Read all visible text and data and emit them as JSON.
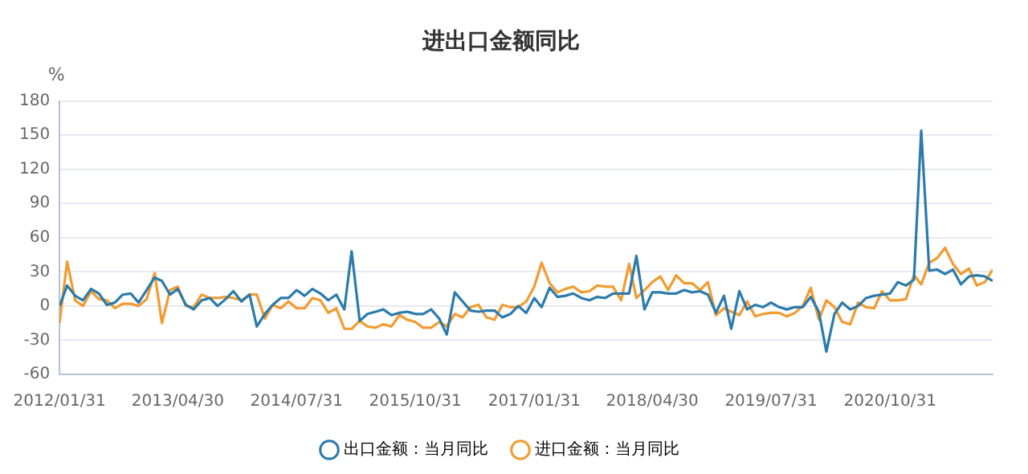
{
  "chart_data": {
    "type": "line",
    "title": "进出口金额同比",
    "ylabel": "%",
    "x": [
      "2012-01-31",
      "2012-02-29",
      "2012-03-31",
      "2012-04-30",
      "2012-05-31",
      "2012-06-30",
      "2012-07-31",
      "2012-08-31",
      "2012-09-30",
      "2012-10-31",
      "2012-11-30",
      "2012-12-31",
      "2013-01-31",
      "2013-02-28",
      "2013-03-31",
      "2013-04-30",
      "2013-05-31",
      "2013-06-30",
      "2013-07-31",
      "2013-08-31",
      "2013-09-30",
      "2013-10-31",
      "2013-11-30",
      "2013-12-31",
      "2014-01-31",
      "2014-02-28",
      "2014-03-31",
      "2014-04-30",
      "2014-05-31",
      "2014-06-30",
      "2014-07-31",
      "2014-08-31",
      "2014-09-30",
      "2014-10-31",
      "2014-11-30",
      "2014-12-31",
      "2015-01-31",
      "2015-02-28",
      "2015-03-31",
      "2015-04-30",
      "2015-05-31",
      "2015-06-30",
      "2015-07-31",
      "2015-08-31",
      "2015-09-30",
      "2015-10-31",
      "2015-11-30",
      "2015-12-31",
      "2016-01-31",
      "2016-02-29",
      "2016-03-31",
      "2016-04-30",
      "2016-05-31",
      "2016-06-30",
      "2016-07-31",
      "2016-08-31",
      "2016-09-30",
      "2016-10-31",
      "2016-11-30",
      "2016-12-31",
      "2017-01-31",
      "2017-02-28",
      "2017-03-31",
      "2017-04-30",
      "2017-05-31",
      "2017-06-30",
      "2017-07-31",
      "2017-08-31",
      "2017-09-30",
      "2017-10-31",
      "2017-11-30",
      "2017-12-31",
      "2018-01-31",
      "2018-02-28",
      "2018-03-31",
      "2018-04-30",
      "2018-05-31",
      "2018-06-30",
      "2018-07-31",
      "2018-08-31",
      "2018-09-30",
      "2018-10-31",
      "2018-11-30",
      "2018-12-31",
      "2019-01-31",
      "2019-02-28",
      "2019-03-31",
      "2019-04-30",
      "2019-05-31",
      "2019-06-30",
      "2019-07-31",
      "2019-08-31",
      "2019-09-30",
      "2019-10-31",
      "2019-11-30",
      "2019-12-31",
      "2020-01-31",
      "2020-02-29",
      "2020-03-31",
      "2020-04-30",
      "2020-05-31",
      "2020-06-30",
      "2020-07-31",
      "2020-08-31",
      "2020-09-30",
      "2020-10-31",
      "2020-11-30",
      "2020-12-31",
      "2021-01-31",
      "2021-02-28",
      "2021-03-31",
      "2021-04-30",
      "2021-05-31",
      "2021-06-30",
      "2021-07-31",
      "2021-08-31",
      "2021-09-30",
      "2021-10-31",
      "2021-11-30"
    ],
    "series": [
      {
        "name": "出口金额：当月同比",
        "color": "#2b7bab",
        "values": [
          0,
          18,
          9,
          5,
          15,
          11,
          1,
          3,
          10,
          11,
          3,
          14,
          25,
          22,
          10,
          15,
          1,
          -3,
          5,
          7,
          0,
          6,
          13,
          4,
          10,
          -18,
          -7,
          1,
          7,
          7,
          14,
          9,
          15,
          11,
          5,
          10,
          -3,
          48,
          -13,
          -7,
          -5,
          -3,
          -8,
          -6,
          -5,
          -7,
          -7,
          -3,
          -11,
          -25,
          12,
          4,
          -4,
          -5,
          -4,
          -4,
          -10,
          -7,
          0,
          -6,
          7,
          -1,
          16,
          8,
          9,
          11,
          7,
          5,
          8,
          7,
          11,
          11,
          11,
          44,
          -3,
          12,
          12,
          11,
          11,
          14,
          12,
          13,
          10,
          -6,
          9,
          -20,
          13,
          -3,
          1,
          -1,
          3,
          -1,
          -3,
          -1,
          -1,
          8,
          -5,
          -40,
          -7,
          3,
          -3,
          0,
          7,
          9,
          10,
          11,
          21,
          18,
          23,
          154,
          31,
          32,
          28,
          32,
          19,
          26,
          27,
          26,
          22
        ]
      },
      {
        "name": "进口金额：当月同比",
        "color": "#f29b2f",
        "values": [
          -15,
          39,
          5,
          0,
          13,
          6,
          5,
          -2,
          2,
          2,
          0,
          6,
          29,
          -15,
          14,
          17,
          0,
          -1,
          10,
          7,
          7,
          8,
          7,
          5,
          10,
          10,
          -11,
          1,
          -2,
          4,
          -2,
          -2,
          7,
          5,
          -6,
          -2,
          -20,
          -20,
          -13,
          -18,
          -19,
          -16,
          -18,
          -8,
          -12,
          -14,
          -19,
          -19,
          -14,
          -18,
          -7,
          -10,
          -1,
          1,
          -10,
          -12,
          1,
          -1,
          -1,
          4,
          17,
          38,
          20,
          12,
          15,
          17,
          12,
          13,
          18,
          17,
          17,
          5,
          37,
          7,
          14,
          21,
          26,
          14,
          27,
          20,
          20,
          14,
          21,
          -8,
          -2,
          -5,
          -8,
          4,
          -9,
          -7,
          -6,
          -6,
          -9,
          -6,
          0,
          16,
          -12,
          5,
          -1,
          -14,
          -16,
          3,
          -1,
          -2,
          13,
          5,
          5,
          6,
          27,
          19,
          38,
          42,
          51,
          37,
          28,
          33,
          18,
          21,
          32
        ]
      }
    ],
    "xlim": [
      "2012-01-31",
      "2021-11-30"
    ],
    "xticks": [
      {
        "value": "2012-01-31",
        "label": "2012/01/31"
      },
      {
        "value": "2013-04-30",
        "label": "2013/04/30"
      },
      {
        "value": "2014-07-31",
        "label": "2014/07/31"
      },
      {
        "value": "2015-10-31",
        "label": "2015/10/31"
      },
      {
        "value": "2017-01-31",
        "label": "2017/01/31"
      },
      {
        "value": "2018-04-30",
        "label": "2018/04/30"
      },
      {
        "value": "2019-07-31",
        "label": "2019/07/31"
      },
      {
        "value": "2020-10-31",
        "label": "2020/10/31"
      }
    ],
    "ylim": [
      -60,
      180
    ],
    "yticks": [
      -60,
      -30,
      0,
      30,
      60,
      90,
      120,
      150,
      180
    ],
    "grid": "y",
    "legend": "bottom",
    "marker": "none",
    "line_style": "solid"
  }
}
